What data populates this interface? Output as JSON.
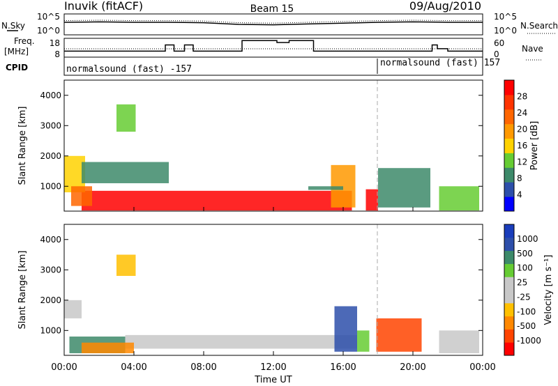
{
  "header": {
    "station": "Inuvik (fitACF)",
    "beam": "Beam 15",
    "date": "09/Aug/2010"
  },
  "nsky_panel": {
    "left_label": "N.Sky",
    "right_label": "N.Search",
    "left_ticks": [
      "10^5",
      "10^0"
    ],
    "right_ticks": [
      "10^5",
      "10^0"
    ]
  },
  "freq_panel": {
    "left_label_line1": "Freq.",
    "left_label_line2": "[MHz]",
    "right_label": "Nave",
    "left_ticks": [
      "18",
      "8"
    ],
    "right_ticks": [
      "60",
      "0"
    ]
  },
  "cpid_panel": {
    "label": "CPID",
    "segments": [
      "normalsound (fast) -157",
      "normalsound (fast) 157"
    ]
  },
  "colors": {
    "power_scale": [
      "#0000ff",
      "#2d4faa",
      "#3d8a6a",
      "#66cc33",
      "#ffd200",
      "#ff9900",
      "#ff6600",
      "#ff3300",
      "#ff0000"
    ],
    "velocity_scale": [
      "#ff0000",
      "#ff4400",
      "#ff8800",
      "#ffc000",
      "#c8c8c8",
      "#c8c8c8",
      "#66cc33",
      "#3d8a6a",
      "#2d4faa",
      "#1a3dbb"
    ]
  },
  "chart_data": [
    {
      "type": "line",
      "name": "nsky-nsearch",
      "x": [
        "00:00",
        "02:00",
        "04:00",
        "06:00",
        "08:00",
        "10:00",
        "12:00",
        "14:00",
        "16:00",
        "18:00",
        "20:00",
        "22:00",
        "24:00"
      ],
      "series": [
        {
          "values": [
            3.0,
            3.1,
            3.0,
            3.0,
            2.9,
            2.5,
            2.4,
            2.6,
            2.8,
            3.0,
            3.1,
            3.0,
            3.0
          ]
        }
      ]
    },
    {
      "type": "line",
      "name": "frequency",
      "ylim": [
        8,
        18
      ],
      "x_hours": [
        0,
        5.8,
        6.3,
        6.9,
        7.4,
        10.2,
        12.2,
        12.9,
        14.3,
        14.9,
        16.0,
        17.9,
        21.1,
        21.4,
        22.0,
        24.0
      ],
      "series": [
        {
          "values": [
            11.2,
            14.5,
            11.2,
            14.5,
            11.2,
            16.8,
            15.8,
            16.8,
            11.2,
            11.2,
            11.2,
            11.2,
            14.5,
            12.5,
            11.2,
            11.2
          ]
        }
      ]
    },
    {
      "type": "heatmap",
      "name": "power",
      "title": "",
      "xlabel": "",
      "ylabel": "Slant Range [km]",
      "x_ticks": [
        "00:00",
        "04:00",
        "08:00",
        "12:00",
        "16:00",
        "20:00",
        "00:00"
      ],
      "y_ticks": [
        "1000",
        "2000",
        "3000",
        "4000"
      ],
      "ylim": [
        180,
        4500
      ],
      "colorbar_label": "Power [dB]",
      "colorbar_ticks": [
        "4",
        "8",
        "12",
        "16",
        "20",
        "24",
        "28"
      ],
      "colorbar_range": [
        0,
        30
      ],
      "regions": [
        {
          "t0": 1.0,
          "t1": 16.5,
          "r0": 200,
          "r1": 850,
          "value": 29
        },
        {
          "t0": 0.0,
          "t1": 1.2,
          "r0": 800,
          "r1": 2000,
          "value": 14
        },
        {
          "t0": 0.4,
          "t1": 1.6,
          "r0": 350,
          "r1": 1000,
          "value": 22
        },
        {
          "t0": 1.0,
          "t1": 6.0,
          "r0": 1100,
          "r1": 1800,
          "value": 9
        },
        {
          "t0": 3.0,
          "t1": 4.1,
          "r0": 2800,
          "r1": 3700,
          "value": 12
        },
        {
          "t0": 15.3,
          "t1": 16.7,
          "r0": 300,
          "r1": 1700,
          "value": 17
        },
        {
          "t0": 17.3,
          "t1": 18.0,
          "r0": 200,
          "r1": 900,
          "value": 28
        },
        {
          "t0": 18.0,
          "t1": 21.0,
          "r0": 300,
          "r1": 1600,
          "value": 9
        },
        {
          "t0": 21.5,
          "t1": 23.8,
          "r0": 200,
          "r1": 1000,
          "value": 10
        },
        {
          "t0": 14.0,
          "t1": 16.0,
          "r0": 880,
          "r1": 1000,
          "value": 8
        }
      ]
    },
    {
      "type": "heatmap",
      "name": "velocity",
      "title": "",
      "xlabel": "Time UT",
      "ylabel": "Slant Range [km]",
      "x_ticks": [
        "00:00",
        "04:00",
        "08:00",
        "12:00",
        "16:00",
        "20:00",
        "00:00"
      ],
      "y_ticks": [
        "1000",
        "2000",
        "3000",
        "4000"
      ],
      "ylim": [
        180,
        4500
      ],
      "colorbar_label": "Velocity [m s^-1]",
      "colorbar_ticks": [
        "1000",
        "500",
        "100",
        "25",
        "-25",
        "-100",
        "-500",
        "-1000"
      ],
      "regions": [
        {
          "t0": 3.5,
          "t1": 16.8,
          "r0": 400,
          "r1": 850,
          "value": 0
        },
        {
          "t0": 0.0,
          "t1": 1.0,
          "r0": 1400,
          "r1": 2000,
          "value": 0
        },
        {
          "t0": 0.3,
          "t1": 3.5,
          "r0": 250,
          "r1": 800,
          "value": 150
        },
        {
          "t0": 1.0,
          "t1": 4.0,
          "r0": 250,
          "r1": 600,
          "value": -150
        },
        {
          "t0": 3.0,
          "t1": 4.1,
          "r0": 2800,
          "r1": 3500,
          "value": -60
        },
        {
          "t0": 15.5,
          "t1": 16.8,
          "r0": 300,
          "r1": 1800,
          "value": 700
        },
        {
          "t0": 16.8,
          "t1": 17.5,
          "r0": 300,
          "r1": 1000,
          "value": 60
        },
        {
          "t0": 17.9,
          "t1": 20.5,
          "r0": 300,
          "r1": 1400,
          "value": -600
        },
        {
          "t0": 21.5,
          "t1": 23.8,
          "r0": 250,
          "r1": 1000,
          "value": 0
        }
      ]
    }
  ]
}
